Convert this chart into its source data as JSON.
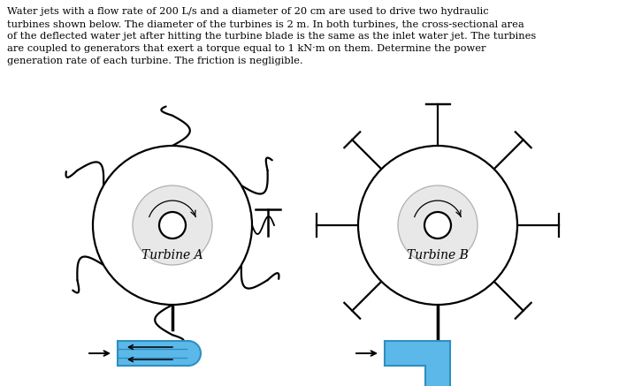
{
  "background_color": "#ffffff",
  "text_color": "#000000",
  "blue_color": "#5bb8e8",
  "dark_blue": "#2e8fc0",
  "paragraph": "Water jets with a flow rate of 200 L/s and a diameter of 20 cm are used to drive two hydraulic\nturbines shown below. The diameter of the turbines is 2 m. In both turbines, the cross-sectional area\nof the deflected water jet after hitting the turbine blade is the same as the inlet water jet. The turbines\nare coupled to generators that exert a torque equal to 1 kN·m on them. Determine the power\ngeneration rate of each turbine. The friction is negligible.",
  "turbine_a_label": "Turbine A",
  "turbine_b_label": "Turbine B",
  "fig_width": 7.0,
  "fig_height": 4.37,
  "dpi": 100
}
